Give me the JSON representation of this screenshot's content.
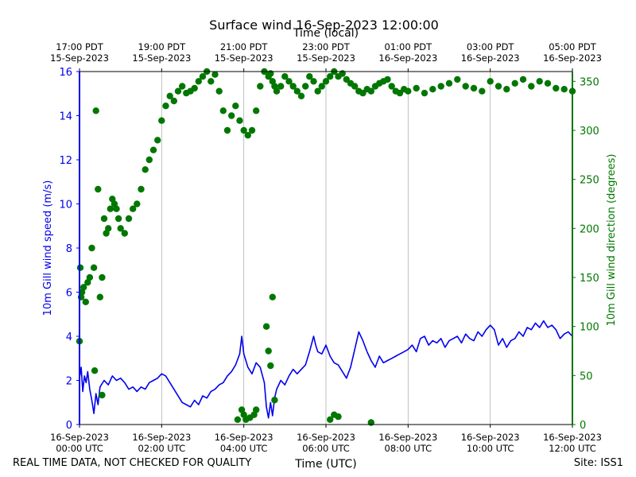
{
  "colors": {
    "wind_speed": "#0000ee",
    "wind_direction": "#007700",
    "grid": "#b0b0b0"
  },
  "chart_data": {
    "type": "line",
    "title": "Surface wind 16-Sep-2023 12:00:00",
    "xlabel": "Time (UTC)",
    "top_xlabel": "Time (local)",
    "ylabel_left": "10m Gill wind speed (m/s)",
    "ylabel_right": "10m Gill wind direction (degrees)",
    "footer_left": "REAL TIME DATA, NOT CHECKED FOR QUALITY",
    "footer_right": "Site: ISS1",
    "x_range_hours_utc": [
      0,
      12
    ],
    "ylim_left": [
      0,
      16
    ],
    "ylim_right": [
      0,
      360
    ],
    "grid": "vertical",
    "xticks_bottom": [
      {
        "h": 0,
        "l1": "16-Sep-2023",
        "l2": "00:00 UTC"
      },
      {
        "h": 2,
        "l1": "16-Sep-2023",
        "l2": "02:00 UTC"
      },
      {
        "h": 4,
        "l1": "16-Sep-2023",
        "l2": "04:00 UTC"
      },
      {
        "h": 6,
        "l1": "16-Sep-2023",
        "l2": "06:00 UTC"
      },
      {
        "h": 8,
        "l1": "16-Sep-2023",
        "l2": "08:00 UTC"
      },
      {
        "h": 10,
        "l1": "16-Sep-2023",
        "l2": "10:00 UTC"
      },
      {
        "h": 12,
        "l1": "16-Sep-2023",
        "l2": "12:00 UTC"
      }
    ],
    "xticks_top": [
      {
        "h": 0,
        "l1": "17:00 PDT",
        "l2": "15-Sep-2023"
      },
      {
        "h": 2,
        "l1": "19:00 PDT",
        "l2": "15-Sep-2023"
      },
      {
        "h": 4,
        "l1": "21:00 PDT",
        "l2": "15-Sep-2023"
      },
      {
        "h": 6,
        "l1": "23:00 PDT",
        "l2": "15-Sep-2023"
      },
      {
        "h": 8,
        "l1": "01:00 PDT",
        "l2": "16-Sep-2023"
      },
      {
        "h": 10,
        "l1": "03:00 PDT",
        "l2": "16-Sep-2023"
      },
      {
        "h": 12,
        "l1": "05:00 PDT",
        "l2": "16-Sep-2023"
      }
    ],
    "yticks_left": [
      0,
      2,
      4,
      6,
      8,
      10,
      12,
      14,
      16
    ],
    "yticks_right": [
      0,
      50,
      100,
      150,
      200,
      250,
      300,
      350
    ],
    "series": [
      {
        "name": "10m Gill wind speed (m/s)",
        "axis": "left",
        "marker": "line",
        "x": [
          0,
          0.04,
          0.08,
          0.12,
          0.16,
          0.2,
          0.25,
          0.3,
          0.35,
          0.4,
          0.45,
          0.5,
          0.6,
          0.7,
          0.8,
          0.9,
          1.0,
          1.1,
          1.2,
          1.3,
          1.4,
          1.5,
          1.6,
          1.7,
          1.8,
          1.9,
          2.0,
          2.1,
          2.2,
          2.3,
          2.4,
          2.5,
          2.6,
          2.7,
          2.8,
          2.9,
          3.0,
          3.1,
          3.2,
          3.3,
          3.4,
          3.5,
          3.6,
          3.7,
          3.8,
          3.9,
          3.95,
          4.0,
          4.1,
          4.2,
          4.3,
          4.4,
          4.5,
          4.55,
          4.6,
          4.65,
          4.7,
          4.75,
          4.8,
          4.9,
          5.0,
          5.1,
          5.2,
          5.3,
          5.4,
          5.5,
          5.6,
          5.7,
          5.75,
          5.8,
          5.9,
          6.0,
          6.1,
          6.2,
          6.3,
          6.4,
          6.5,
          6.6,
          6.7,
          6.8,
          6.9,
          7.0,
          7.1,
          7.2,
          7.3,
          7.4,
          7.5,
          7.6,
          7.7,
          7.8,
          7.9,
          8.0,
          8.1,
          8.2,
          8.3,
          8.4,
          8.5,
          8.6,
          8.7,
          8.8,
          8.9,
          9.0,
          9.1,
          9.2,
          9.3,
          9.4,
          9.5,
          9.6,
          9.7,
          9.8,
          9.9,
          10.0,
          10.1,
          10.2,
          10.3,
          10.4,
          10.5,
          10.6,
          10.7,
          10.8,
          10.9,
          11.0,
          11.1,
          11.2,
          11.3,
          11.4,
          11.5,
          11.6,
          11.7,
          11.8,
          11.9,
          12.0
        ],
        "y": [
          2.1,
          2.6,
          1.5,
          2.2,
          1.9,
          2.4,
          1.6,
          1.1,
          0.5,
          1.4,
          0.9,
          1.7,
          2.0,
          1.8,
          2.2,
          2.0,
          2.1,
          1.9,
          1.6,
          1.7,
          1.5,
          1.7,
          1.6,
          1.9,
          2.0,
          2.1,
          2.3,
          2.2,
          1.9,
          1.6,
          1.3,
          1.0,
          0.9,
          0.8,
          1.1,
          0.9,
          1.3,
          1.2,
          1.5,
          1.6,
          1.8,
          1.9,
          2.2,
          2.4,
          2.7,
          3.2,
          4.0,
          3.2,
          2.6,
          2.3,
          2.8,
          2.6,
          1.9,
          0.8,
          0.3,
          1.0,
          0.4,
          1.2,
          1.6,
          2.0,
          1.8,
          2.2,
          2.5,
          2.3,
          2.5,
          2.7,
          3.3,
          4.0,
          3.6,
          3.3,
          3.2,
          3.6,
          3.1,
          2.8,
          2.7,
          2.4,
          2.1,
          2.6,
          3.4,
          4.2,
          3.8,
          3.3,
          2.9,
          2.6,
          3.1,
          2.8,
          2.9,
          3.0,
          3.1,
          3.2,
          3.3,
          3.4,
          3.6,
          3.3,
          3.9,
          4.0,
          3.6,
          3.8,
          3.7,
          3.9,
          3.5,
          3.8,
          3.9,
          4.0,
          3.7,
          4.1,
          3.9,
          3.8,
          4.2,
          4.0,
          4.3,
          4.5,
          4.3,
          3.6,
          3.9,
          3.5,
          3.8,
          3.9,
          4.2,
          4.0,
          4.4,
          4.3,
          4.6,
          4.4,
          4.7,
          4.4,
          4.5,
          4.3,
          3.9,
          4.1,
          4.2,
          4.0
        ]
      },
      {
        "name": "10m Gill wind direction (degrees)",
        "axis": "right",
        "marker": "dot",
        "x": [
          0.0,
          0.02,
          0.04,
          0.06,
          0.1,
          0.15,
          0.2,
          0.25,
          0.3,
          0.35,
          0.4,
          0.45,
          0.5,
          0.55,
          0.6,
          0.65,
          0.7,
          0.75,
          0.8,
          0.85,
          0.9,
          0.95,
          1.0,
          1.1,
          1.2,
          1.3,
          1.4,
          1.5,
          1.6,
          1.7,
          1.8,
          1.9,
          2.0,
          2.1,
          2.2,
          2.3,
          2.4,
          2.5,
          2.6,
          2.7,
          2.8,
          2.9,
          3.0,
          3.1,
          3.2,
          3.3,
          3.4,
          3.5,
          3.6,
          3.7,
          3.8,
          3.9,
          4.0,
          4.1,
          4.2,
          4.3,
          4.4,
          4.5,
          4.6,
          4.65,
          4.7,
          4.75,
          4.8,
          4.9,
          5.0,
          5.1,
          5.2,
          5.3,
          5.4,
          5.5,
          5.6,
          5.7,
          5.8,
          5.9,
          6.0,
          6.1,
          6.2,
          6.3,
          6.4,
          6.5,
          6.6,
          6.7,
          6.8,
          6.9,
          7.0,
          7.1,
          7.2,
          7.3,
          7.4,
          7.5,
          7.6,
          7.7,
          7.8,
          7.9,
          8.0,
          8.2,
          8.4,
          8.6,
          8.8,
          9.0,
          9.2,
          9.4,
          9.6,
          9.8,
          10.0,
          10.2,
          10.4,
          10.6,
          10.8,
          11.0,
          11.2,
          11.4,
          11.6,
          11.8,
          12.0,
          0.37,
          0.55,
          3.85,
          3.95,
          4.0,
          4.05,
          4.15,
          4.25,
          4.3,
          4.55,
          4.6,
          4.65,
          4.7,
          4.75,
          6.1,
          6.2,
          6.3,
          7.1
        ],
        "y": [
          85,
          160,
          130,
          135,
          140,
          125,
          145,
          150,
          180,
          160,
          320,
          240,
          130,
          150,
          210,
          195,
          200,
          220,
          230,
          225,
          220,
          210,
          200,
          195,
          210,
          220,
          225,
          240,
          260,
          270,
          280,
          290,
          310,
          325,
          335,
          330,
          340,
          345,
          338,
          340,
          343,
          350,
          355,
          360,
          350,
          357,
          340,
          320,
          300,
          315,
          325,
          310,
          300,
          295,
          300,
          320,
          345,
          360,
          355,
          358,
          350,
          345,
          340,
          345,
          355,
          350,
          345,
          340,
          335,
          345,
          355,
          350,
          340,
          345,
          350,
          355,
          360,
          355,
          358,
          352,
          348,
          345,
          340,
          338,
          342,
          340,
          345,
          348,
          350,
          352,
          345,
          340,
          338,
          342,
          340,
          343,
          338,
          342,
          345,
          348,
          352,
          345,
          343,
          340,
          350,
          345,
          342,
          348,
          352,
          345,
          350,
          348,
          343,
          342,
          340,
          55,
          30,
          5,
          15,
          10,
          5,
          7,
          10,
          15,
          100,
          75,
          60,
          130,
          25,
          5,
          10,
          8,
          2
        ]
      }
    ]
  }
}
